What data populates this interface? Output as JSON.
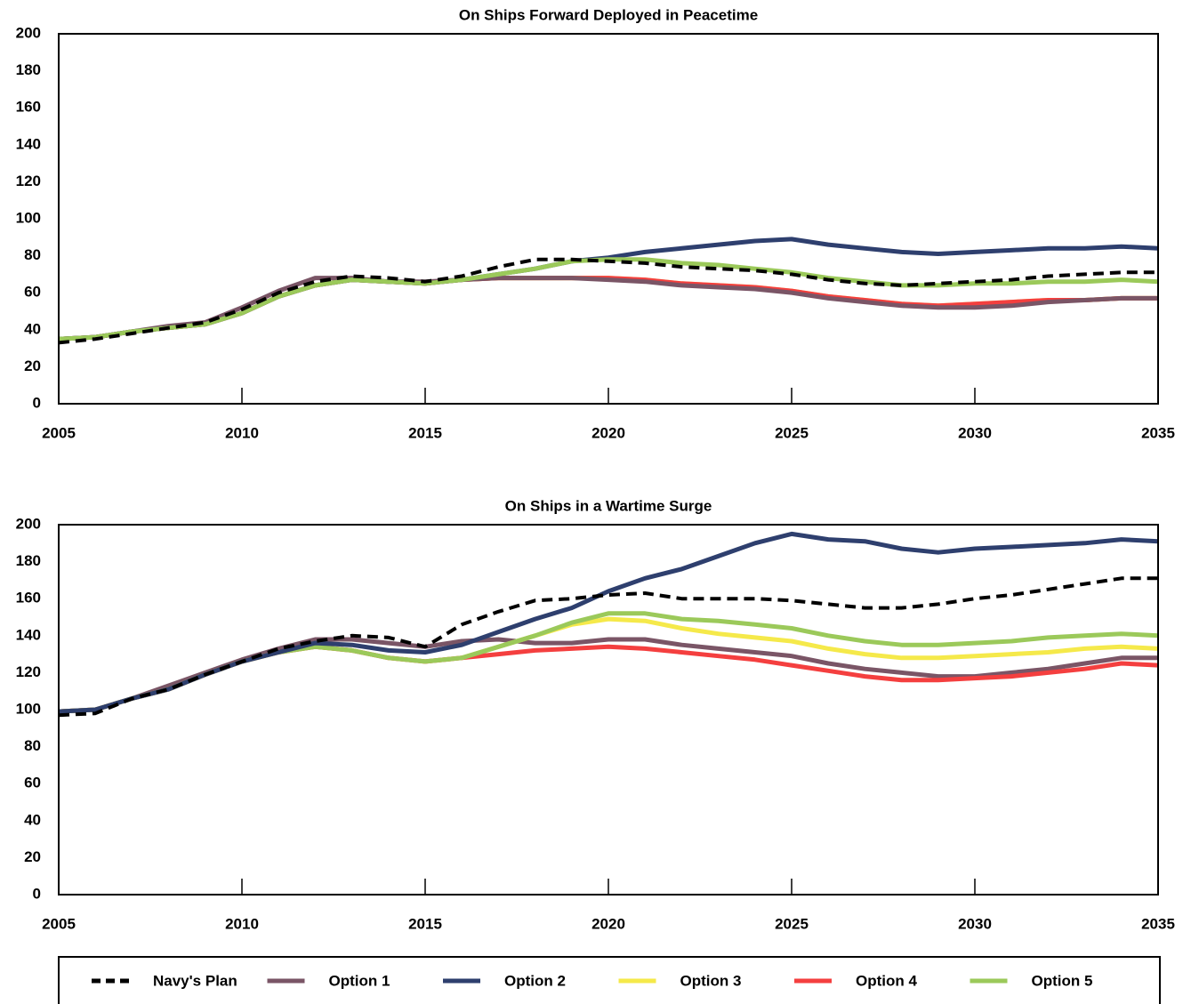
{
  "chart_data": [
    {
      "type": "line",
      "title": "On Ships Forward Deployed in Peacetime",
      "x": [
        2005,
        2006,
        2007,
        2008,
        2009,
        2010,
        2011,
        2012,
        2013,
        2014,
        2015,
        2016,
        2017,
        2018,
        2019,
        2020,
        2021,
        2022,
        2023,
        2024,
        2025,
        2026,
        2027,
        2028,
        2029,
        2030,
        2031,
        2032,
        2033,
        2034,
        2035
      ],
      "xlim": [
        2005,
        2035
      ],
      "xticks": [
        2005,
        2010,
        2015,
        2020,
        2025,
        2030,
        2035
      ],
      "ylim": [
        0,
        200
      ],
      "yticks": [
        0,
        20,
        40,
        60,
        80,
        100,
        120,
        140,
        160,
        180,
        200
      ],
      "series": [
        {
          "name": "Option 3",
          "color": "#f5e94a",
          "values": [
            35,
            36,
            39,
            41,
            43,
            49,
            58,
            64,
            67,
            66,
            65,
            67,
            68,
            68,
            68,
            68,
            67,
            65,
            64,
            63,
            61,
            58,
            56,
            54,
            53,
            54,
            55,
            56,
            56,
            57,
            57
          ]
        },
        {
          "name": "Option 4",
          "color": "#f43f3f",
          "values": [
            35,
            36,
            39,
            41,
            43,
            49,
            58,
            64,
            67,
            66,
            65,
            67,
            68,
            68,
            68,
            68,
            67,
            65,
            64,
            63,
            61,
            58,
            56,
            54,
            53,
            54,
            55,
            56,
            56,
            57,
            57
          ]
        },
        {
          "name": "Option 1",
          "color": "#7a5566",
          "values": [
            35,
            36,
            39,
            42,
            44,
            52,
            61,
            68,
            68,
            66,
            66,
            67,
            68,
            68,
            68,
            67,
            66,
            64,
            63,
            62,
            60,
            57,
            55,
            53,
            52,
            52,
            53,
            55,
            56,
            57,
            57
          ]
        },
        {
          "name": "Option 2",
          "color": "#2e3f6e",
          "values": [
            35,
            36,
            39,
            41,
            43,
            49,
            58,
            64,
            67,
            66,
            65,
            67,
            70,
            73,
            77,
            79,
            82,
            84,
            86,
            88,
            89,
            86,
            84,
            82,
            81,
            82,
            83,
            84,
            84,
            85,
            84
          ]
        },
        {
          "name": "Option 5",
          "color": "#9bc95a",
          "values": [
            35,
            36,
            39,
            41,
            43,
            49,
            58,
            64,
            67,
            66,
            65,
            67,
            70,
            73,
            77,
            78,
            78,
            76,
            75,
            73,
            71,
            68,
            66,
            64,
            64,
            65,
            65,
            66,
            66,
            67,
            66
          ]
        },
        {
          "name": "Navy's Plan",
          "color": "#000000",
          "style": "dashed",
          "values": [
            33,
            35,
            38,
            41,
            44,
            51,
            60,
            66,
            69,
            68,
            66,
            69,
            74,
            78,
            78,
            77,
            76,
            74,
            73,
            72,
            70,
            67,
            65,
            64,
            65,
            66,
            67,
            69,
            70,
            71,
            71
          ]
        }
      ]
    },
    {
      "type": "line",
      "title": "On Ships in a Wartime Surge",
      "x": [
        2005,
        2006,
        2007,
        2008,
        2009,
        2010,
        2011,
        2012,
        2013,
        2014,
        2015,
        2016,
        2017,
        2018,
        2019,
        2020,
        2021,
        2022,
        2023,
        2024,
        2025,
        2026,
        2027,
        2028,
        2029,
        2030,
        2031,
        2032,
        2033,
        2034,
        2035
      ],
      "xlim": [
        2005,
        2035
      ],
      "xticks": [
        2005,
        2010,
        2015,
        2020,
        2025,
        2030,
        2035
      ],
      "ylim": [
        0,
        200
      ],
      "yticks": [
        0,
        20,
        40,
        60,
        80,
        100,
        120,
        140,
        160,
        180,
        200
      ],
      "series": [
        {
          "name": "Option 1",
          "color": "#7a5566",
          "values": [
            99,
            100,
            106,
            113,
            120,
            127,
            133,
            138,
            138,
            136,
            134,
            137,
            138,
            136,
            136,
            138,
            138,
            135,
            133,
            131,
            129,
            125,
            122,
            120,
            118,
            118,
            120,
            122,
            125,
            128,
            128
          ]
        },
        {
          "name": "Option 3",
          "color": "#f5e94a",
          "values": [
            99,
            100,
            106,
            111,
            119,
            126,
            131,
            134,
            132,
            128,
            126,
            128,
            134,
            140,
            146,
            149,
            148,
            144,
            141,
            139,
            137,
            133,
            130,
            128,
            128,
            129,
            130,
            131,
            133,
            134,
            133
          ]
        },
        {
          "name": "Option 4",
          "color": "#f43f3f",
          "values": [
            99,
            100,
            106,
            111,
            119,
            126,
            131,
            134,
            132,
            128,
            126,
            128,
            130,
            132,
            133,
            134,
            133,
            131,
            129,
            127,
            124,
            121,
            118,
            116,
            116,
            117,
            118,
            120,
            122,
            125,
            124
          ]
        },
        {
          "name": "Option 5",
          "color": "#9bc95a",
          "values": [
            99,
            100,
            106,
            111,
            119,
            126,
            131,
            134,
            132,
            128,
            126,
            128,
            134,
            140,
            147,
            152,
            152,
            149,
            148,
            146,
            144,
            140,
            137,
            135,
            135,
            136,
            137,
            139,
            140,
            141,
            140
          ]
        },
        {
          "name": "Option 2",
          "color": "#2e3f6e",
          "values": [
            99,
            100,
            106,
            111,
            119,
            126,
            131,
            136,
            135,
            132,
            131,
            135,
            142,
            149,
            155,
            164,
            171,
            176,
            183,
            190,
            195,
            192,
            191,
            187,
            185,
            187,
            188,
            189,
            190,
            192,
            191
          ]
        },
        {
          "name": "Navy's Plan",
          "color": "#000000",
          "style": "dashed",
          "values": [
            97,
            98,
            106,
            111,
            119,
            126,
            133,
            137,
            140,
            139,
            134,
            146,
            153,
            159,
            160,
            162,
            163,
            160,
            160,
            160,
            159,
            157,
            155,
            155,
            157,
            160,
            162,
            165,
            168,
            171,
            171
          ]
        }
      ]
    }
  ],
  "legend": [
    "Navy's Plan",
    "Option 1",
    "Option 2",
    "Option 3",
    "Option 4",
    "Option 5"
  ]
}
